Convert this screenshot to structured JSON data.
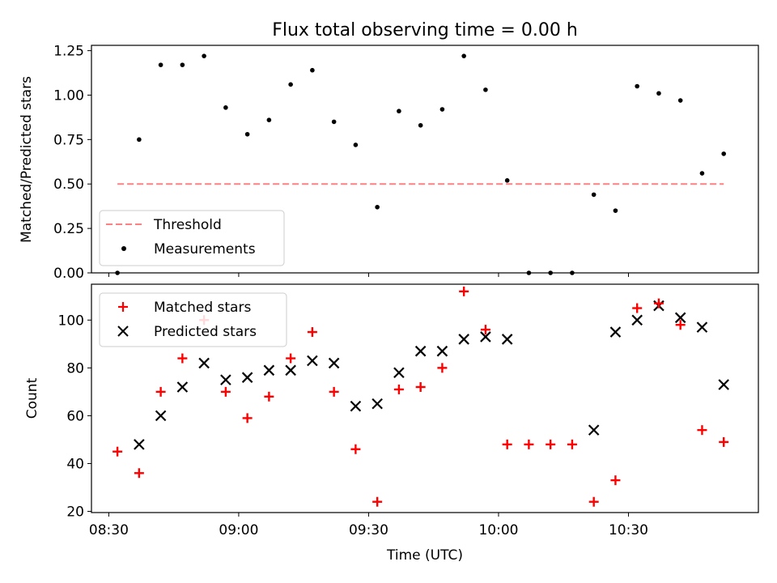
{
  "chart_data": [
    {
      "type": "scatter",
      "title": "Flux total observing time = 0.00 h",
      "ylabel": "Matched/Predicted stars",
      "ylim": [
        0,
        1.28
      ],
      "yticks": [
        "0.00",
        "0.25",
        "0.50",
        "0.75",
        "1.00",
        "1.25"
      ],
      "ytick_values": [
        0,
        0.25,
        0.5,
        0.75,
        1.0,
        1.25
      ],
      "legend_position": "lower-left",
      "threshold": {
        "name": "Threshold",
        "value": 0.5,
        "x_start": "08:32",
        "x_end": "10:52",
        "color": "#ff8080"
      },
      "series": [
        {
          "name": "Measurements",
          "color": "#000000",
          "x": [
            "08:32",
            "08:37",
            "08:42",
            "08:47",
            "08:52",
            "08:57",
            "09:02",
            "09:07",
            "09:12",
            "09:17",
            "09:22",
            "09:27",
            "09:32",
            "09:37",
            "09:42",
            "09:47",
            "09:52",
            "09:57",
            "10:02",
            "10:07",
            "10:12",
            "10:17",
            "10:22",
            "10:27",
            "10:32",
            "10:37",
            "10:42",
            "10:47",
            "10:52"
          ],
          "y": [
            0.0,
            0.75,
            1.17,
            1.17,
            1.22,
            0.93,
            0.78,
            0.86,
            1.06,
            1.14,
            0.85,
            0.72,
            0.37,
            0.91,
            0.83,
            0.92,
            1.22,
            1.03,
            0.52,
            0.0,
            0.0,
            0.0,
            0.44,
            0.35,
            1.05,
            1.01,
            0.97,
            0.56,
            0.67
          ]
        }
      ]
    },
    {
      "type": "scatter",
      "xlabel": "Time (UTC)",
      "ylabel": "Count",
      "ylim": [
        19.5,
        115
      ],
      "yticks": [
        "20",
        "40",
        "60",
        "80",
        "100"
      ],
      "ytick_values": [
        20,
        40,
        60,
        80,
        100
      ],
      "xticks": [
        "08:30",
        "09:00",
        "09:30",
        "10:00",
        "10:30"
      ],
      "legend_position": "upper-left",
      "series": [
        {
          "name": "Matched stars",
          "color": "#ff0000",
          "marker": "plus",
          "x": [
            "08:32",
            "08:37",
            "08:42",
            "08:47",
            "08:52",
            "08:57",
            "09:02",
            "09:07",
            "09:12",
            "09:17",
            "09:22",
            "09:27",
            "09:32",
            "09:37",
            "09:42",
            "09:47",
            "09:52",
            "09:57",
            "10:02",
            "10:07",
            "10:12",
            "10:17",
            "10:22",
            "10:27",
            "10:32",
            "10:37",
            "10:42",
            "10:47",
            "10:52"
          ],
          "y": [
            45,
            36,
            70,
            84,
            100,
            70,
            59,
            68,
            84,
            95,
            70,
            46,
            24,
            71,
            72,
            80,
            112,
            96,
            48,
            48,
            48,
            48,
            24,
            33,
            105,
            107,
            98,
            54,
            49
          ]
        },
        {
          "name": "Predicted stars",
          "color": "#000000",
          "marker": "x",
          "x": [
            "08:37",
            "08:42",
            "08:47",
            "08:52",
            "08:57",
            "09:02",
            "09:07",
            "09:12",
            "09:17",
            "09:22",
            "09:27",
            "09:32",
            "09:37",
            "09:42",
            "09:47",
            "09:52",
            "09:57",
            "10:02",
            "10:22",
            "10:27",
            "10:32",
            "10:37",
            "10:42",
            "10:47",
            "10:52"
          ],
          "y": [
            48,
            60,
            72,
            82,
            75,
            76,
            79,
            79,
            83,
            82,
            64,
            65,
            78,
            87,
            87,
            92,
            93,
            92,
            54,
            95,
            100,
            106,
            101,
            97,
            73
          ]
        }
      ]
    }
  ]
}
